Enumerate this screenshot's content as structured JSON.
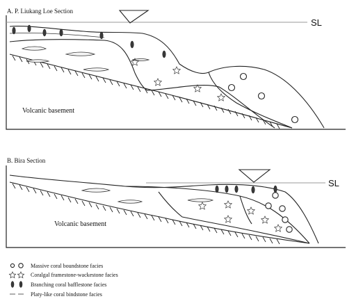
{
  "section_a": {
    "title": "A. P. Liukang Loe Section",
    "sea_level": "SL",
    "basement": "Volcanic basement"
  },
  "section_b": {
    "title": "B. Bira Section",
    "sea_level": "SL",
    "basement": "Volcanic basement"
  },
  "legend": {
    "massive": "Massive coral boundstone facies",
    "coralgal": "Coralgal framestone-wackestone facies",
    "branching": "Branching coral bafflestone facies",
    "platy": "Platy-like coral bindstone facies"
  }
}
